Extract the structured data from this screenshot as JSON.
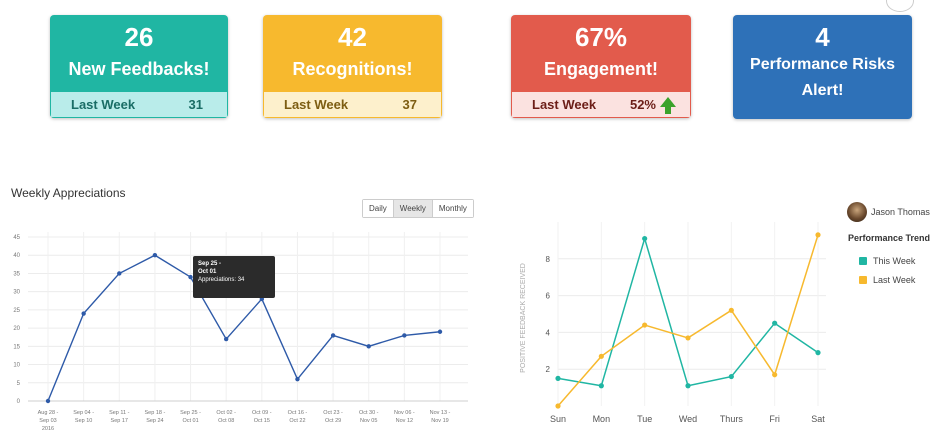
{
  "cards": [
    {
      "number": "26",
      "label": "New Feedbacks!",
      "sub_label": "Last Week",
      "sub_value": "31"
    },
    {
      "number": "42",
      "label": "Recognitions!",
      "sub_label": "Last Week",
      "sub_value": "37"
    },
    {
      "number": "67%",
      "label": "Engagement!",
      "sub_label": "Last Week",
      "sub_value": "52%"
    },
    {
      "number": "4",
      "label_line1": "Performance Risks",
      "label_line2": "Alert!"
    }
  ],
  "weekly": {
    "title": "Weekly Appreciations",
    "buttons": [
      "Daily",
      "Weekly",
      "Monthly"
    ],
    "active_button": "Weekly",
    "tooltip": {
      "line1": "Sep 25 -",
      "line2": "Oct 01",
      "line3": "Appreciations: 34"
    }
  },
  "trend": {
    "user": "Jason Thomas",
    "title": "Performance Trend",
    "legend": [
      "This Week",
      "Last Week"
    ],
    "ylabel": "POSITIVE FEEDBACK RECEIVED"
  },
  "chart_data": [
    {
      "type": "line",
      "title": "Weekly Appreciations",
      "categories": [
        "Aug 28 - Sep 03 2016",
        "Sep 04 - Sep 10",
        "Sep 11 - Sep 17",
        "Sep 18 - Sep 24",
        "Sep 25 - Oct 01",
        "Oct 02 - Oct 08",
        "Oct 09 - Oct 15",
        "Oct 16 - Oct 22",
        "Oct 23 - Oct 29",
        "Oct 30 - Nov 05",
        "Nov 06 - Nov 12",
        "Nov 13 - Nov 19"
      ],
      "tick_lines": [
        [
          "Aug 28 -",
          "Sep 03",
          "2016"
        ],
        [
          "Sep 04 -",
          "Sep 10"
        ],
        [
          "Sep 11 -",
          "Sep 17"
        ],
        [
          "Sep 18 -",
          "Sep 24"
        ],
        [
          "Sep 25 -",
          "Oct 01"
        ],
        [
          "Oct 02 -",
          "Oct 08"
        ],
        [
          "Oct 09 -",
          "Oct 15"
        ],
        [
          "Oct 16 -",
          "Oct 22"
        ],
        [
          "Oct 23 -",
          "Oct 29"
        ],
        [
          "Oct 30 -",
          "Nov 05"
        ],
        [
          "Nov 06 -",
          "Nov 12"
        ],
        [
          "Nov 13 -",
          "Nov 19"
        ]
      ],
      "series": [
        {
          "name": "Appreciations",
          "values": [
            0,
            24,
            35,
            40,
            34,
            17,
            28,
            6,
            18,
            15,
            18,
            19
          ]
        }
      ],
      "ylim": [
        0,
        45
      ],
      "yticks": [
        0,
        5,
        10,
        15,
        20,
        25,
        30,
        35,
        40,
        45
      ],
      "color": "#2e5aa8",
      "grid": true
    },
    {
      "type": "line",
      "categories": [
        "Sun",
        "Mon",
        "Tue",
        "Wed",
        "Thurs",
        "Fri",
        "Sat"
      ],
      "series": [
        {
          "name": "This Week",
          "values": [
            1.5,
            1.1,
            9.1,
            1.1,
            1.6,
            4.5,
            2.9
          ],
          "color": "#20b6a3"
        },
        {
          "name": "Last Week",
          "values": [
            0,
            2.7,
            4.4,
            3.7,
            5.2,
            1.7,
            9.3
          ],
          "color": "#f7b92e"
        }
      ],
      "ylim": [
        0,
        10
      ],
      "yticks": [
        2,
        4,
        6,
        8
      ],
      "ylabel": "POSITIVE FEEDBACK RECEIVED",
      "grid": true
    }
  ]
}
